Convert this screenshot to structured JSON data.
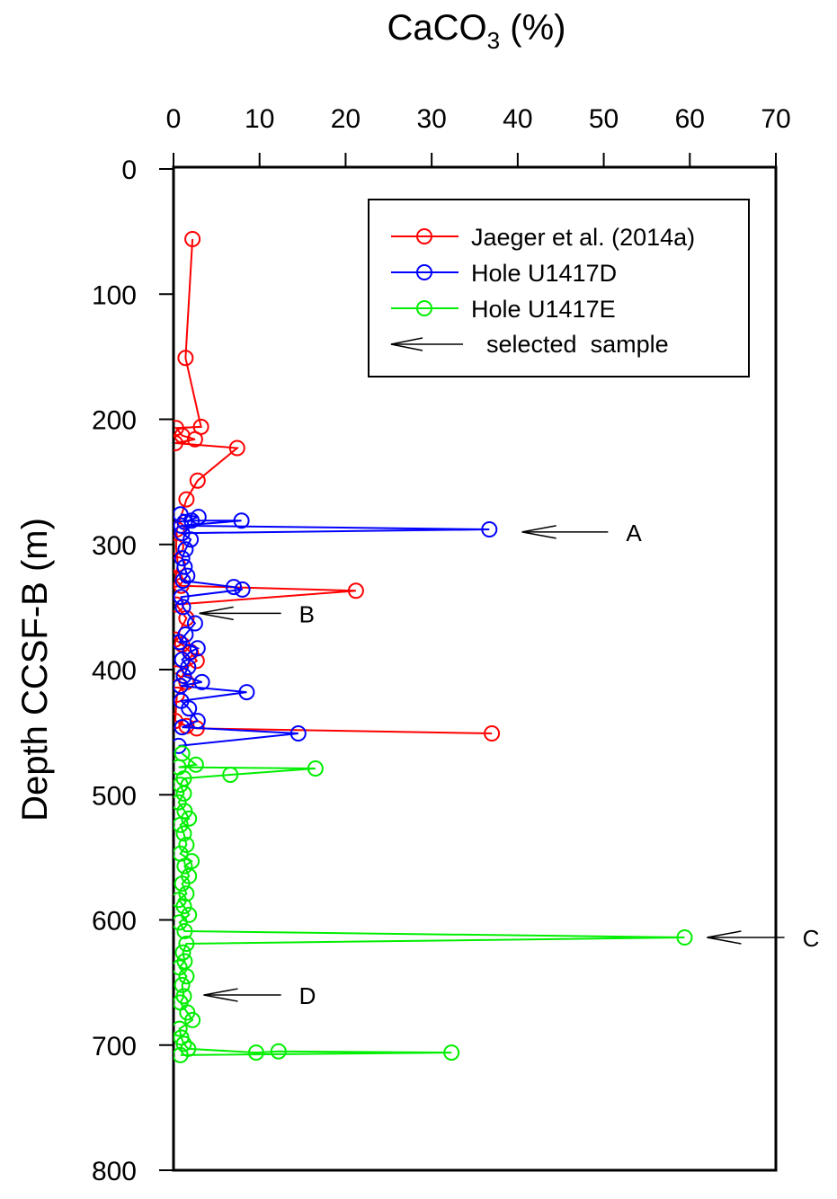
{
  "chart_data": {
    "type": "scatter",
    "title": "",
    "xlabel_prefix": "CaCO",
    "xlabel_sub": "3",
    "xlabel_suffix": " (%)",
    "ylabel": "Depth CCSF-B (m)",
    "xlim": [
      0,
      70
    ],
    "ylim": [
      0,
      800
    ],
    "y_inverted": true,
    "x_axis_position": "top",
    "x_ticks": [
      0,
      10,
      20,
      30,
      40,
      50,
      60,
      70
    ],
    "y_ticks": [
      0,
      100,
      200,
      300,
      400,
      500,
      600,
      700,
      800
    ],
    "grid": false,
    "legend_position": "top-right",
    "series": [
      {
        "name": "Jaeger et al. (2014a)",
        "color": "#ff0000",
        "points": [
          [
            2.2,
            56
          ],
          [
            1.4,
            151
          ],
          [
            3.2,
            206
          ],
          [
            0.3,
            207
          ],
          [
            1.0,
            213
          ],
          [
            2.5,
            216
          ],
          [
            0.2,
            219
          ],
          [
            7.4,
            223
          ],
          [
            2.8,
            249
          ],
          [
            1.5,
            264
          ],
          [
            0.4,
            288
          ],
          [
            0.3,
            302
          ],
          [
            0.5,
            316
          ],
          [
            0.2,
            328
          ],
          [
            0.9,
            333
          ],
          [
            21.2,
            337
          ],
          [
            0.3,
            348
          ],
          [
            1.5,
            359
          ],
          [
            0.2,
            376
          ],
          [
            1.0,
            380
          ],
          [
            2.0,
            386
          ],
          [
            2.7,
            393
          ],
          [
            0.3,
            403
          ],
          [
            1.5,
            410
          ],
          [
            0.4,
            420
          ],
          [
            0.2,
            441
          ],
          [
            1.5,
            445
          ],
          [
            2.7,
            447
          ],
          [
            37.0,
            451
          ]
        ]
      },
      {
        "name": "Hole U1417D",
        "color": "#0000ff",
        "points": [
          [
            0.8,
            276
          ],
          [
            2.9,
            278
          ],
          [
            1.3,
            282
          ],
          [
            2.1,
            281
          ],
          [
            7.9,
            281
          ],
          [
            0.9,
            285
          ],
          [
            36.7,
            288
          ],
          [
            1.0,
            291
          ],
          [
            2.0,
            296
          ],
          [
            1.4,
            304
          ],
          [
            1.0,
            311
          ],
          [
            1.3,
            318
          ],
          [
            1.6,
            325
          ],
          [
            1.1,
            329
          ],
          [
            7.0,
            334
          ],
          [
            8.0,
            336
          ],
          [
            0.9,
            342
          ],
          [
            1.1,
            350
          ],
          [
            2.5,
            363
          ],
          [
            1.4,
            372
          ],
          [
            0.7,
            378
          ],
          [
            2.8,
            383
          ],
          [
            1.9,
            386
          ],
          [
            1.0,
            392
          ],
          [
            1.7,
            398
          ],
          [
            1.2,
            405
          ],
          [
            3.3,
            410
          ],
          [
            0.8,
            413
          ],
          [
            8.5,
            418
          ],
          [
            0.9,
            425
          ],
          [
            1.8,
            431
          ],
          [
            2.8,
            441
          ],
          [
            1.0,
            446
          ],
          [
            14.5,
            451
          ],
          [
            0.6,
            461
          ]
        ]
      },
      {
        "name": "Hole U1417E",
        "color": "#00ee00",
        "points": [
          [
            1.0,
            467
          ],
          [
            2.6,
            476
          ],
          [
            0.6,
            478
          ],
          [
            16.5,
            479
          ],
          [
            6.6,
            484
          ],
          [
            1.2,
            487
          ],
          [
            0.8,
            492
          ],
          [
            1.2,
            499
          ],
          [
            0.6,
            506
          ],
          [
            1.3,
            513
          ],
          [
            1.8,
            519
          ],
          [
            0.8,
            524
          ],
          [
            1.2,
            531
          ],
          [
            1.5,
            540
          ],
          [
            0.8,
            547
          ],
          [
            2.1,
            553
          ],
          [
            1.3,
            557
          ],
          [
            1.8,
            565
          ],
          [
            1.0,
            571
          ],
          [
            1.5,
            579
          ],
          [
            0.6,
            584
          ],
          [
            1.2,
            589
          ],
          [
            1.8,
            596
          ],
          [
            0.7,
            602
          ],
          [
            1.3,
            609
          ],
          [
            59.4,
            614
          ],
          [
            1.5,
            619
          ],
          [
            1.1,
            626
          ],
          [
            1.3,
            633
          ],
          [
            0.7,
            638
          ],
          [
            1.5,
            645
          ],
          [
            1.0,
            652
          ],
          [
            1.2,
            661
          ],
          [
            0.8,
            666
          ],
          [
            1.6,
            674
          ],
          [
            2.2,
            680
          ],
          [
            0.7,
            687
          ],
          [
            0.9,
            694
          ],
          [
            1.2,
            699
          ],
          [
            1.7,
            703
          ],
          [
            9.6,
            706
          ],
          [
            12.2,
            705
          ],
          [
            32.3,
            706
          ],
          [
            0.8,
            708
          ]
        ]
      }
    ],
    "legend_extra": "selected  sample",
    "annotations": [
      {
        "label": "A",
        "x_tip": 40.5,
        "x_tail": 50.5,
        "y": 290
      },
      {
        "label": "B",
        "x_tip": 3.0,
        "x_tail": 12.5,
        "y": 355
      },
      {
        "label": "C",
        "x_tip": 62.0,
        "x_tail": 71.0,
        "y": 614
      },
      {
        "label": "D",
        "x_tip": 3.5,
        "x_tail": 12.5,
        "y": 660
      }
    ]
  }
}
